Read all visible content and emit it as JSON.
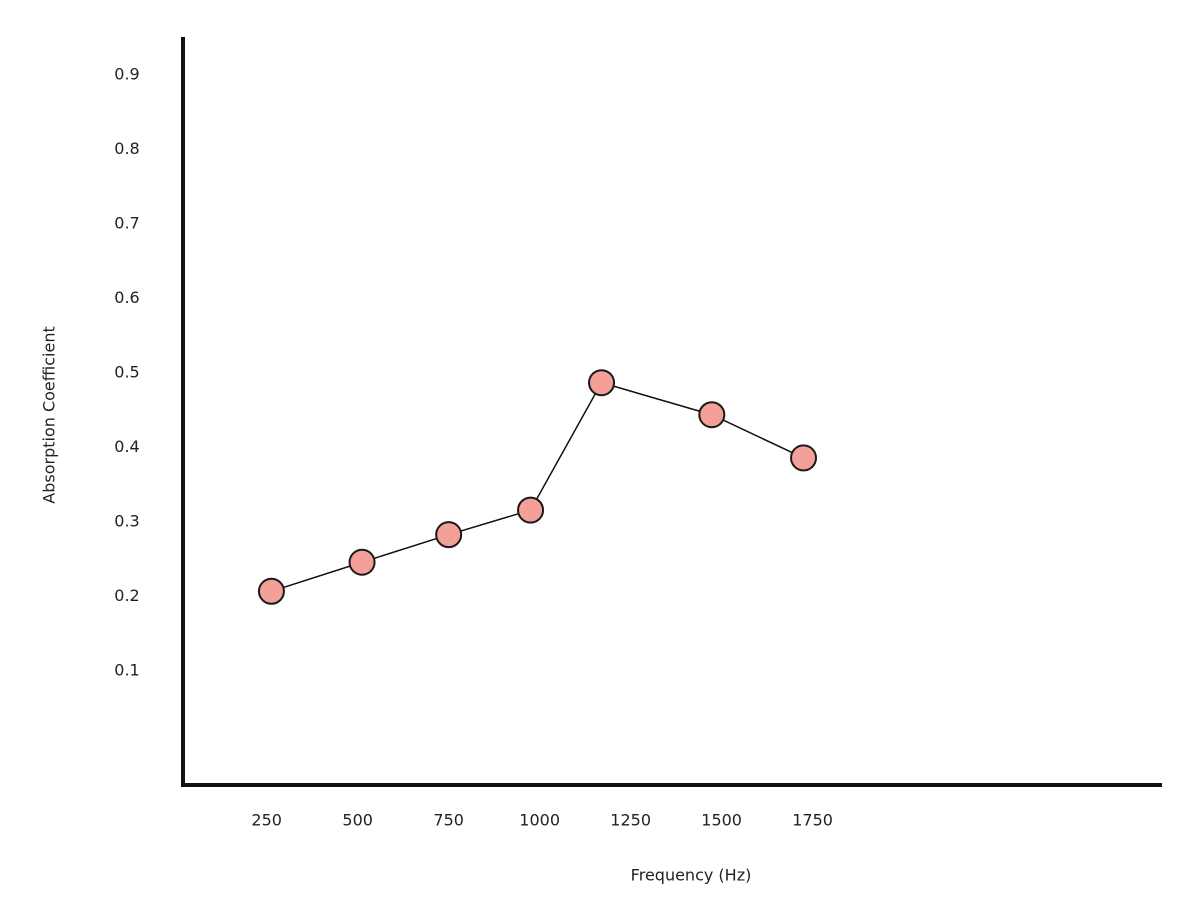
{
  "chart_data": {
    "type": "line",
    "x_label": "Frequency (Hz)",
    "y_label": "Absorption Coefficient",
    "x": [
      263,
      512,
      750,
      975,
      1170,
      1473,
      1725
    ],
    "values": [
      0.207,
      0.246,
      0.283,
      0.316,
      0.487,
      0.444,
      0.386
    ],
    "xlim": [
      20,
      2710
    ],
    "xticks": [
      250,
      500,
      750,
      1000,
      1250,
      1500,
      1750
    ],
    "ylim": [
      -0.053,
      0.951
    ],
    "yticks": [
      0.1,
      0.2,
      0.3,
      0.4,
      0.5,
      0.6,
      0.7,
      0.8,
      0.9
    ],
    "grid": false,
    "color": "#f2a098"
  }
}
